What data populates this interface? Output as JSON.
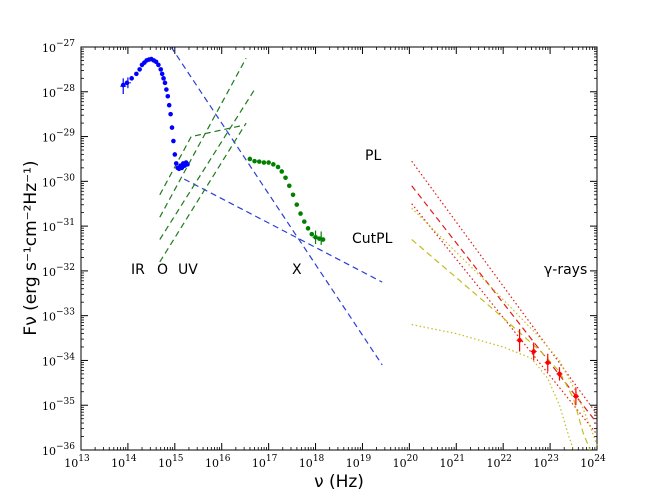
{
  "chart_data": {
    "type": "scatter",
    "title": "",
    "xlabel": "ν (Hz)",
    "ylabel": "Fν (erg s⁻¹cm⁻²Hz⁻¹)",
    "xscale": "log",
    "yscale": "log",
    "xlim_log10": [
      13,
      24
    ],
    "ylim_log10": [
      -36,
      -27
    ],
    "x_tick_exponents": [
      13,
      14,
      15,
      16,
      17,
      18,
      19,
      20,
      21,
      22,
      23,
      24
    ],
    "y_tick_exponents": [
      -36,
      -35,
      -34,
      -33,
      -32,
      -31,
      -30,
      -29,
      -28,
      -27
    ],
    "tick_base": "10",
    "band_labels": [
      "IR",
      "O",
      "UV",
      "X",
      "γ-rays"
    ],
    "legend_labels": {
      "pl": "PL",
      "cutpl": "CutPL"
    },
    "colors": {
      "optical": "#0000ff",
      "xray": "#008000",
      "gamma": "#ff0000",
      "fit_blue": "#2a3fd6",
      "fit_green": "#1d7a1d",
      "pl": "#e11b1b",
      "cutpl": "#c4bd20"
    },
    "series": [
      {
        "name": "IR-optical-UV data",
        "color": "#0000ff",
        "points_log": [
          [
            13.9,
            -27.85
          ],
          [
            13.98,
            -27.8
          ],
          [
            14.08,
            -27.7
          ],
          [
            14.18,
            -27.6
          ],
          [
            14.25,
            -27.5
          ],
          [
            14.3,
            -27.4
          ],
          [
            14.35,
            -27.35
          ],
          [
            14.4,
            -27.3
          ],
          [
            14.45,
            -27.28
          ],
          [
            14.5,
            -27.27
          ],
          [
            14.55,
            -27.3
          ],
          [
            14.6,
            -27.33
          ],
          [
            14.65,
            -27.4
          ],
          [
            14.7,
            -27.5
          ],
          [
            14.73,
            -27.6
          ],
          [
            14.76,
            -27.7
          ],
          [
            14.79,
            -27.8
          ],
          [
            14.82,
            -27.95
          ],
          [
            14.85,
            -28.1
          ],
          [
            14.88,
            -28.3
          ],
          [
            14.91,
            -28.5
          ],
          [
            14.94,
            -28.8
          ],
          [
            14.97,
            -29.1
          ],
          [
            15.0,
            -29.4
          ],
          [
            15.03,
            -29.6
          ],
          [
            15.06,
            -29.7
          ],
          [
            15.09,
            -29.72
          ],
          [
            15.12,
            -29.65
          ],
          [
            15.15,
            -29.7
          ],
          [
            15.18,
            -29.6
          ],
          [
            15.21,
            -29.65
          ],
          [
            15.24,
            -29.58
          ],
          [
            15.27,
            -29.62
          ]
        ],
        "error_bars_log": [
          [
            13.9,
            -28.05,
            -27.7
          ],
          [
            14.0,
            -27.92,
            -27.68
          ]
        ]
      },
      {
        "name": "X-ray data",
        "color": "#008000",
        "points_log": [
          [
            16.6,
            -29.5
          ],
          [
            16.7,
            -29.55
          ],
          [
            16.8,
            -29.56
          ],
          [
            16.9,
            -29.58
          ],
          [
            17.0,
            -29.58
          ],
          [
            17.1,
            -29.62
          ],
          [
            17.2,
            -29.68
          ],
          [
            17.28,
            -29.78
          ],
          [
            17.36,
            -29.92
          ],
          [
            17.44,
            -30.1
          ],
          [
            17.52,
            -30.3
          ],
          [
            17.6,
            -30.52
          ],
          [
            17.68,
            -30.72
          ],
          [
            17.76,
            -30.9
          ],
          [
            17.84,
            -31.05
          ],
          [
            17.92,
            -31.18
          ],
          [
            18.0,
            -31.25
          ],
          [
            18.08,
            -31.28
          ],
          [
            18.16,
            -31.3
          ]
        ],
        "error_bars_log": [
          [
            18.0,
            -31.4,
            -31.1
          ],
          [
            18.12,
            -31.42,
            -31.12
          ]
        ]
      },
      {
        "name": "gamma-ray data",
        "color": "#ff0000",
        "points_log": [
          [
            22.35,
            -33.55
          ],
          [
            22.65,
            -33.8
          ],
          [
            22.95,
            -34.05
          ],
          [
            23.2,
            -34.3
          ],
          [
            23.55,
            -34.8
          ]
        ],
        "error_bars_log": [
          [
            22.35,
            -33.8,
            -33.3
          ],
          [
            22.65,
            -34.0,
            -33.6
          ],
          [
            22.95,
            -34.25,
            -33.85
          ],
          [
            23.2,
            -34.45,
            -34.15
          ],
          [
            23.55,
            -35.0,
            -34.6
          ]
        ]
      }
    ],
    "fit_lines": [
      {
        "name": "blue-dashed-steep",
        "color": "#2a3fd6",
        "style": "dashed",
        "points_log": [
          [
            14.92,
            -27.0
          ],
          [
            19.42,
            -34.1
          ]
        ]
      },
      {
        "name": "blue-dashed-shallow",
        "color": "#2a3fd6",
        "style": "dashed",
        "points_log": [
          [
            15.2,
            -29.95
          ],
          [
            19.42,
            -32.25
          ]
        ]
      },
      {
        "name": "green-dashed-1",
        "color": "#1d7a1d",
        "style": "dashed",
        "points_log": [
          [
            14.68,
            -30.3
          ],
          [
            15.35,
            -29.0
          ],
          [
            16.45,
            -28.75
          ]
        ]
      },
      {
        "name": "green-dashed-2",
        "color": "#1d7a1d",
        "style": "dashed",
        "points_log": [
          [
            14.68,
            -30.8
          ],
          [
            16.52,
            -27.25
          ]
        ]
      },
      {
        "name": "green-dashed-3",
        "color": "#1d7a1d",
        "style": "dashed",
        "points_log": [
          [
            14.68,
            -31.3
          ],
          [
            16.7,
            -27.95
          ]
        ]
      },
      {
        "name": "green-dashed-4",
        "color": "#1d7a1d",
        "style": "dashed",
        "points_log": [
          [
            14.68,
            -31.8
          ],
          [
            16.52,
            -28.7
          ]
        ]
      },
      {
        "name": "PL-best",
        "color": "#e11b1b",
        "style": "dashed",
        "points_log": [
          [
            20.05,
            -30.1
          ],
          [
            24.0,
            -35.4
          ]
        ]
      },
      {
        "name": "PL-upper",
        "color": "#e11b1b",
        "style": "dotted",
        "points_log": [
          [
            20.05,
            -29.55
          ],
          [
            24.0,
            -35.2
          ]
        ]
      },
      {
        "name": "PL-lower",
        "color": "#e11b1b",
        "style": "dotted",
        "points_log": [
          [
            20.05,
            -30.5
          ],
          [
            24.0,
            -35.65
          ]
        ]
      },
      {
        "name": "CutPL-best",
        "color": "#c4bd20",
        "style": "dashed",
        "points_log": [
          [
            20.05,
            -31.3
          ],
          [
            21.0,
            -32.15
          ],
          [
            22.0,
            -33.05
          ],
          [
            22.8,
            -33.8
          ],
          [
            23.2,
            -34.25
          ],
          [
            23.5,
            -34.85
          ],
          [
            23.7,
            -35.6
          ],
          [
            23.85,
            -36.0
          ]
        ]
      },
      {
        "name": "CutPL-upper",
        "color": "#c4bd20",
        "style": "dotted",
        "points_log": [
          [
            20.05,
            -30.6
          ],
          [
            21.5,
            -32.1
          ],
          [
            22.7,
            -33.4
          ],
          [
            23.2,
            -34.0
          ],
          [
            23.6,
            -34.8
          ],
          [
            23.9,
            -35.6
          ],
          [
            24.0,
            -35.9
          ]
        ]
      },
      {
        "name": "CutPL-lower",
        "color": "#c4bd20",
        "style": "dotted",
        "points_log": [
          [
            20.05,
            -33.2
          ],
          [
            21.0,
            -33.4
          ],
          [
            22.0,
            -33.7
          ],
          [
            22.6,
            -33.95
          ],
          [
            22.95,
            -34.4
          ],
          [
            23.2,
            -35.0
          ],
          [
            23.4,
            -35.7
          ],
          [
            23.5,
            -36.0
          ]
        ]
      }
    ]
  }
}
